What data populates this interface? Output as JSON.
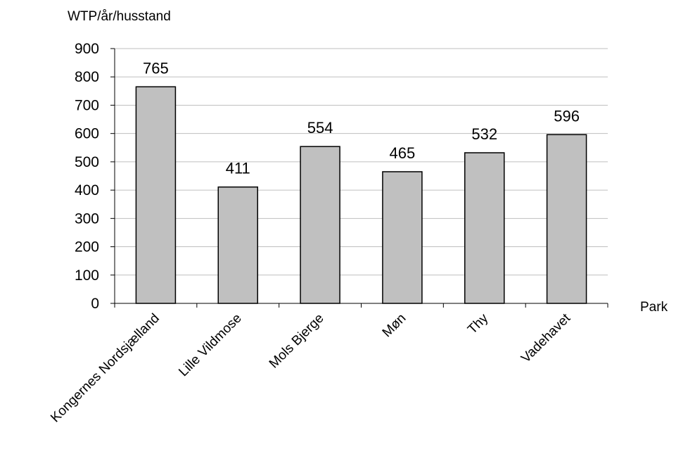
{
  "chart_data": {
    "type": "bar",
    "categories": [
      "Kongernes Nordsjælland",
      "Lille Vildmose",
      "Mols Bjerge",
      "Møn",
      "Thy",
      "Vadehavet"
    ],
    "values": [
      765,
      411,
      554,
      465,
      532,
      596
    ],
    "data_labels": [
      "765",
      "411",
      "554",
      "465",
      "532",
      "596"
    ],
    "title": "",
    "xlabel": "Park",
    "ylabel": "WTP/år/husstand",
    "ylim": [
      0,
      900
    ],
    "yticks": [
      0,
      100,
      200,
      300,
      400,
      500,
      600,
      700,
      800,
      900
    ],
    "grid": true,
    "legend": "none",
    "bar_color": "#c0c0c0",
    "edge_color": "#000000",
    "grid_color": "#bfbfbf"
  }
}
